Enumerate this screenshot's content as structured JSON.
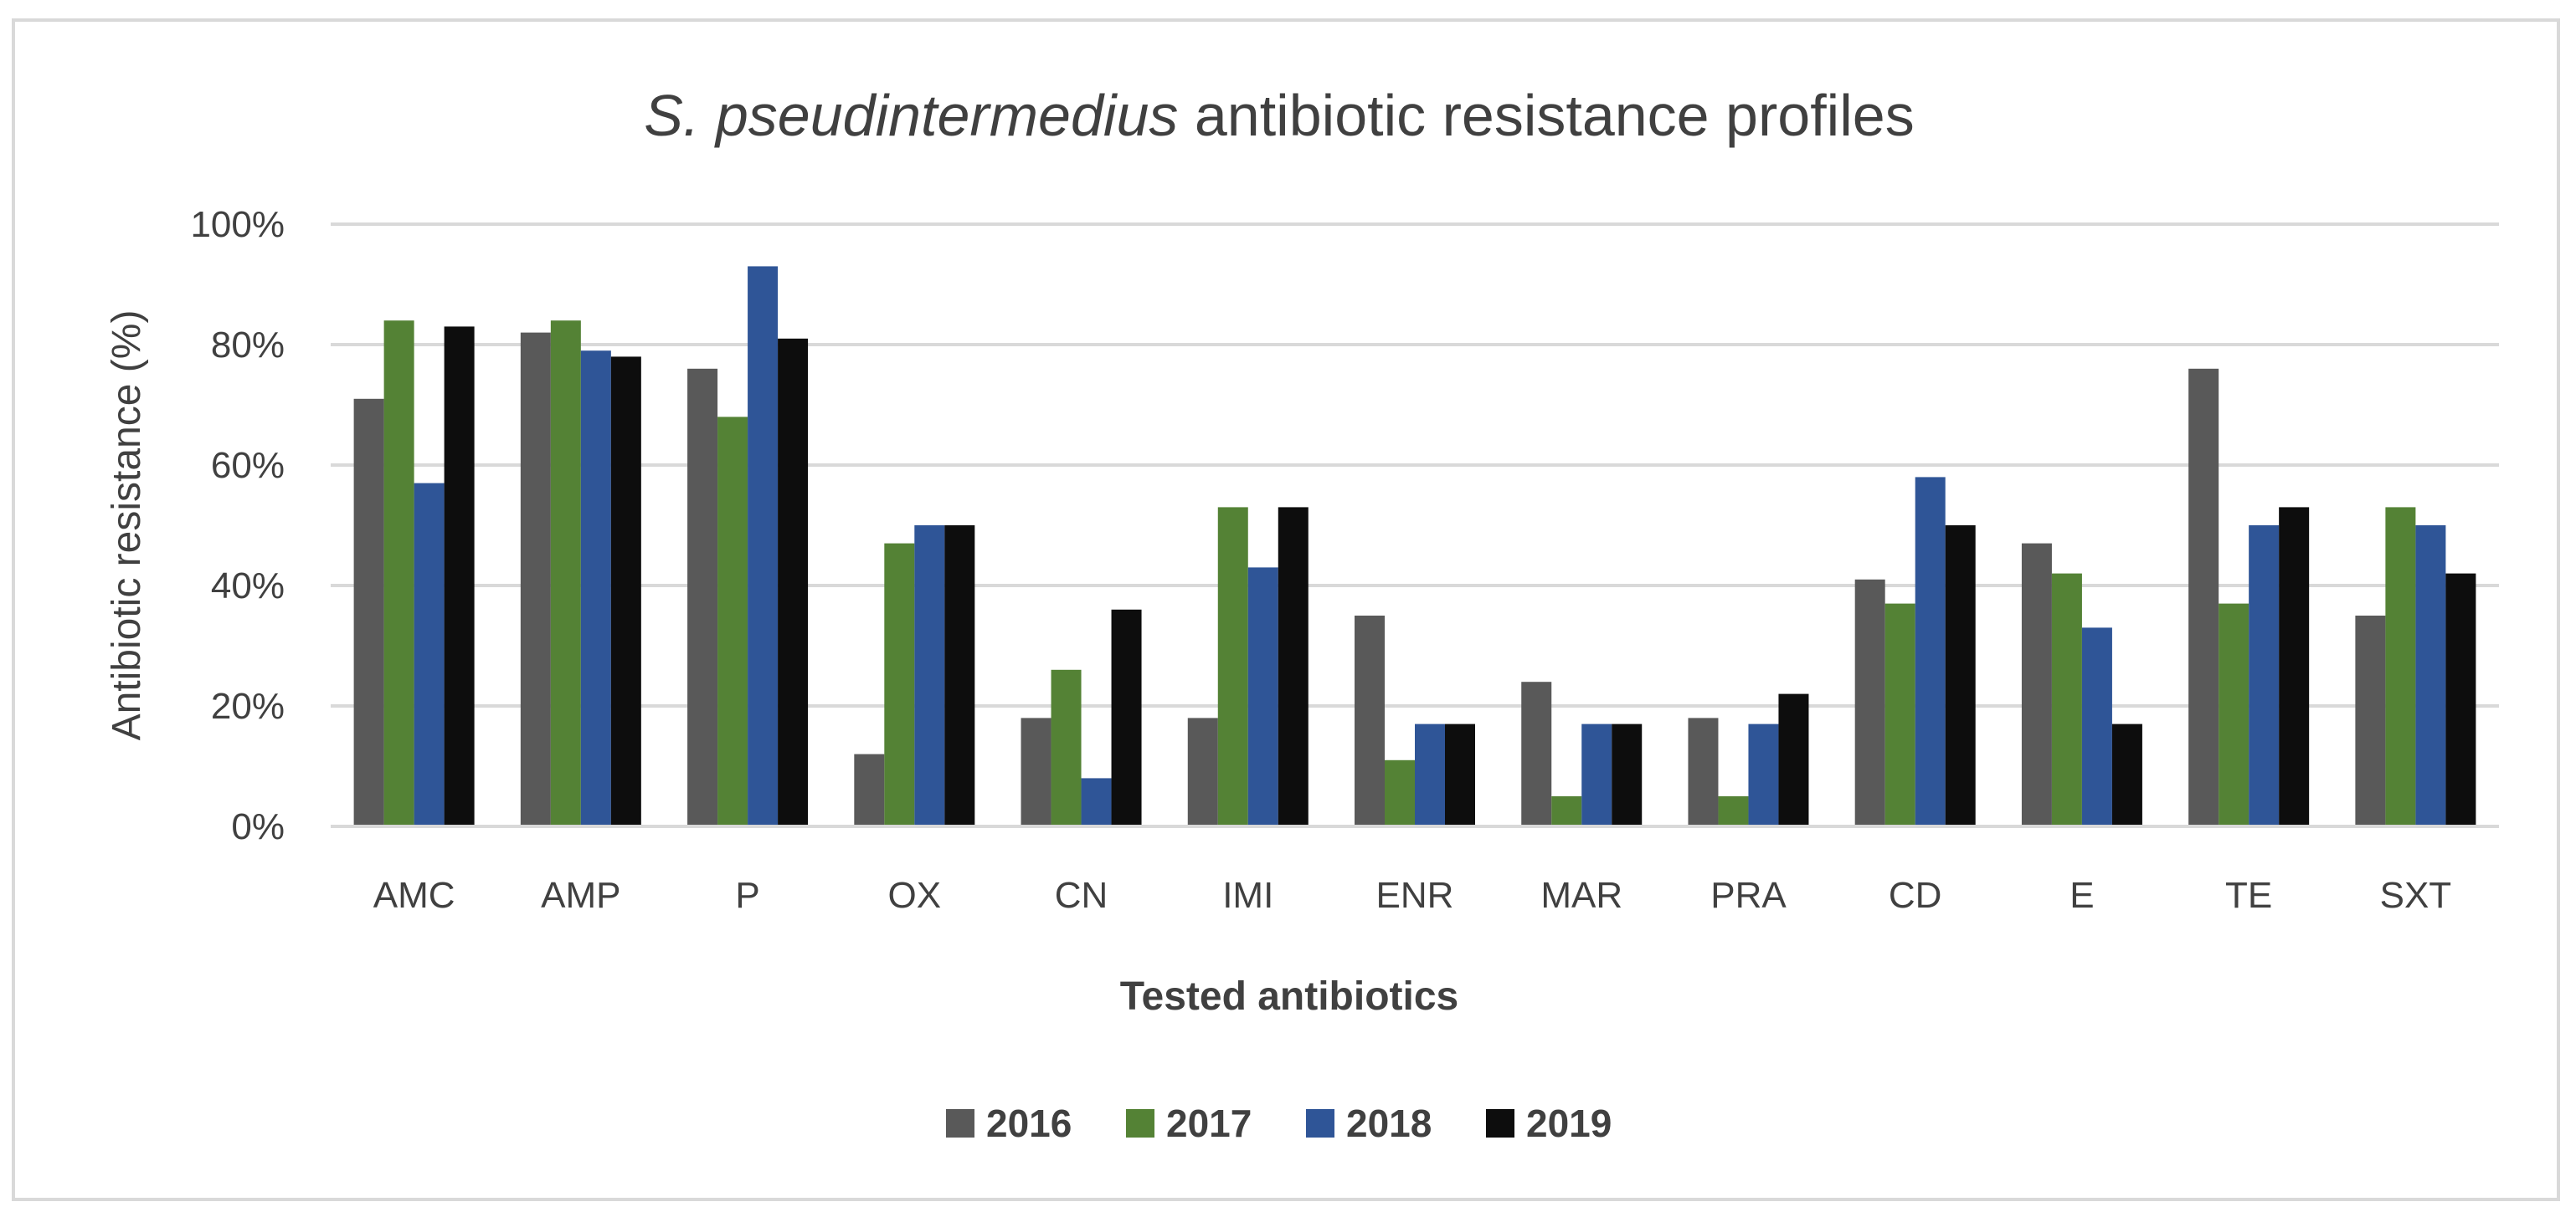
{
  "chart_data": {
    "type": "bar",
    "title_italic": "S. pseudintermedius",
    "title_rest": " antibiotic resistance profiles",
    "xlabel": "Tested antibiotics",
    "ylabel": "Antibiotic resistance (%)",
    "ylim": [
      0,
      100
    ],
    "yticks": [
      0,
      20,
      40,
      60,
      80,
      100
    ],
    "ytick_labels": [
      "0%",
      "20%",
      "40%",
      "60%",
      "80%",
      "100%"
    ],
    "grid": true,
    "legend_position": "bottom",
    "categories": [
      "AMC",
      "AMP",
      "P",
      "OX",
      "CN",
      "IMI",
      "ENR",
      "MAR",
      "PRA",
      "CD",
      "E",
      "TE",
      "SXT"
    ],
    "series": [
      {
        "name": "2016",
        "color": "#595959",
        "values": [
          71,
          82,
          76,
          12,
          18,
          18,
          35,
          24,
          18,
          41,
          47,
          76,
          35
        ]
      },
      {
        "name": "2017",
        "color": "#548235",
        "values": [
          84,
          84,
          68,
          47,
          26,
          53,
          11,
          5,
          5,
          37,
          42,
          37,
          53
        ]
      },
      {
        "name": "2018",
        "color": "#2f5597",
        "values": [
          57,
          79,
          93,
          50,
          8,
          43,
          17,
          17,
          17,
          58,
          33,
          50,
          50
        ]
      },
      {
        "name": "2019",
        "color": "#0d0d0d",
        "values": [
          83,
          78,
          81,
          50,
          36,
          53,
          17,
          17,
          22,
          50,
          17,
          53,
          42
        ]
      }
    ]
  }
}
